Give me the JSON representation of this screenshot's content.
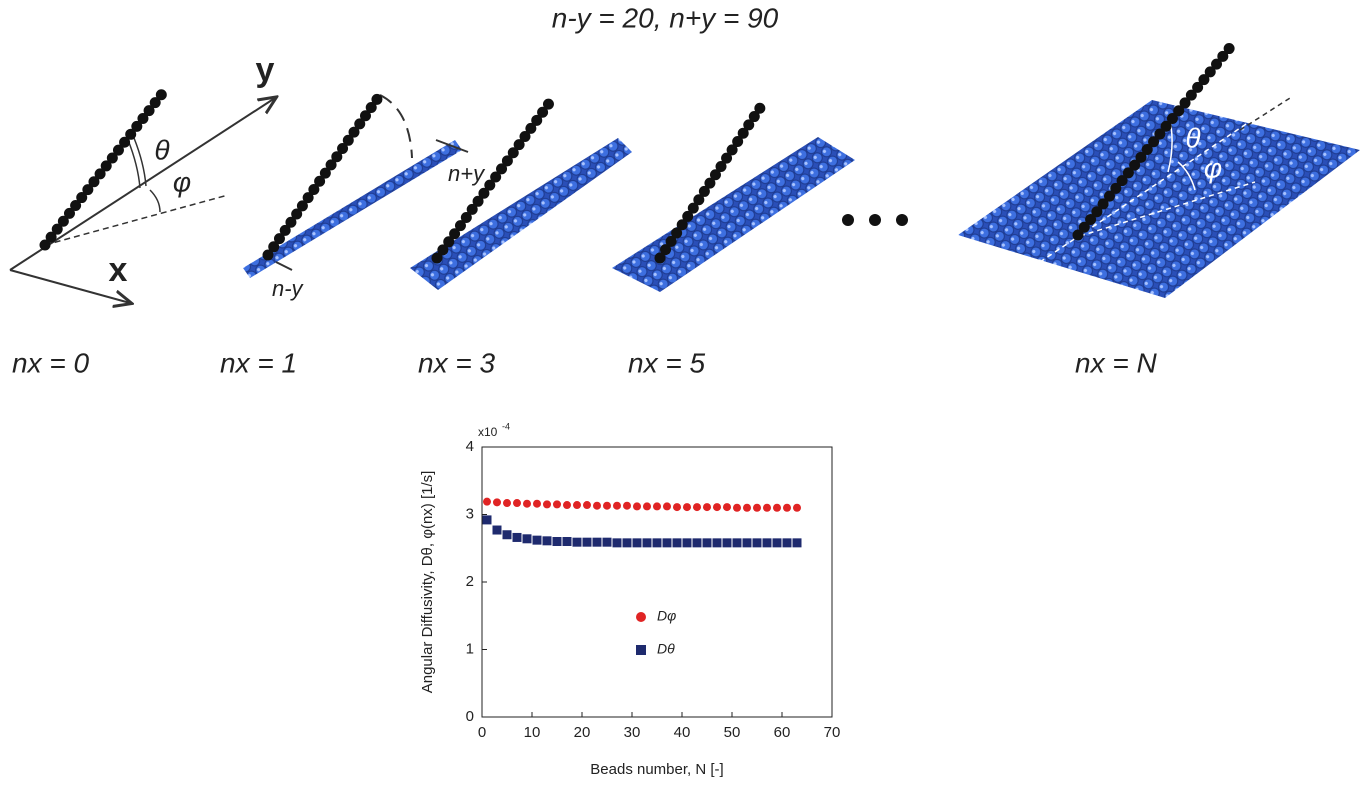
{
  "diagram": {
    "title": "n-y = 20, n+y = 90",
    "labels": {
      "y_axis": "y",
      "x_axis": "x",
      "theta": "θ",
      "phi": "φ",
      "n_plus_y": "n+y",
      "n_minus_y": "n-y",
      "theta_sheet": "θ",
      "phi_sheet": "φ"
    },
    "panels": [
      "nx = 0",
      "nx = 1",
      "nx = 3",
      "nx = 5",
      "nx = N"
    ]
  },
  "chart_data": {
    "type": "scatter",
    "x_label": "Beads number, N [-]",
    "y_label": "Angular Diffusivity, Dθ, φ(nx) [1/s]",
    "scale_label": "x10",
    "scale_exponent": "-4",
    "x": [
      1,
      3,
      5,
      7,
      9,
      11,
      13,
      15,
      17,
      19,
      21,
      23,
      25,
      27,
      29,
      31,
      33,
      35,
      37,
      39,
      41,
      43,
      45,
      47,
      49,
      51,
      53,
      55,
      57,
      59,
      61,
      63
    ],
    "series": [
      {
        "name": "Dφ",
        "color": "#e02424",
        "marker": "circle",
        "values": [
          3.19,
          3.18,
          3.17,
          3.17,
          3.16,
          3.16,
          3.15,
          3.15,
          3.14,
          3.14,
          3.14,
          3.13,
          3.13,
          3.13,
          3.13,
          3.12,
          3.12,
          3.12,
          3.12,
          3.11,
          3.11,
          3.11,
          3.11,
          3.11,
          3.11,
          3.1,
          3.1,
          3.1,
          3.1,
          3.1,
          3.1,
          3.1
        ]
      },
      {
        "name": "Dθ",
        "color": "#1e2a6e",
        "marker": "square",
        "values": [
          2.92,
          2.77,
          2.7,
          2.66,
          2.64,
          2.62,
          2.61,
          2.6,
          2.6,
          2.59,
          2.59,
          2.59,
          2.59,
          2.58,
          2.58,
          2.58,
          2.58,
          2.58,
          2.58,
          2.58,
          2.58,
          2.58,
          2.58,
          2.58,
          2.58,
          2.58,
          2.58,
          2.58,
          2.58,
          2.58,
          2.58,
          2.58
        ]
      }
    ],
    "xlim": [
      0,
      70
    ],
    "xticks": [
      0,
      10,
      20,
      30,
      40,
      50,
      60,
      70
    ],
    "ylim": [
      0,
      4
    ],
    "yticks": [
      0,
      1,
      2,
      3,
      4
    ]
  }
}
